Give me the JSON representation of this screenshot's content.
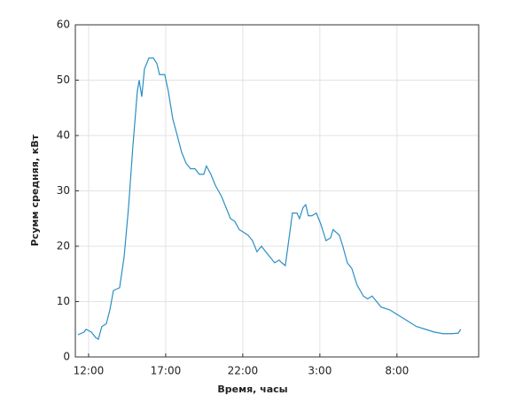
{
  "chart_data": {
    "type": "line",
    "xlabel": "Время, часы",
    "ylabel": "Pсумм средняя, кВт",
    "x": [
      11.31,
      11.71,
      11.83,
      12.17,
      12.46,
      12.63,
      12.86,
      13.15,
      13.38,
      13.61,
      14.01,
      14.3,
      14.59,
      14.87,
      15.16,
      15.28,
      15.45,
      15.62,
      15.91,
      16.2,
      16.43,
      16.6,
      16.94,
      17.17,
      17.46,
      17.75,
      18.03,
      18.32,
      18.61,
      18.9,
      19.18,
      19.47,
      19.64,
      19.93,
      20.22,
      20.62,
      20.91,
      21.2,
      21.48,
      21.77,
      22.06,
      22.34,
      22.63,
      22.92,
      23.21,
      23.49,
      23.78,
      24.07,
      24.36,
      24.53,
      24.76,
      24.93,
      25.22,
      25.51,
      25.68,
      25.91,
      26.08,
      26.25,
      26.48,
      26.77,
      27.06,
      27.4,
      27.69,
      27.86,
      28.26,
      28.49,
      28.78,
      29.07,
      29.41,
      29.82,
      30.1,
      30.39,
      30.68,
      30.97,
      31.54,
      32.11,
      32.69,
      33.26,
      33.84,
      34.41,
      34.99,
      35.56,
      35.97,
      36.14
    ],
    "values": [
      4,
      4.5,
      5,
      4.5,
      3.5,
      3.2,
      5.5,
      6,
      8.5,
      12,
      12.5,
      18,
      27,
      38,
      48,
      50,
      47,
      52,
      54,
      54,
      53,
      51,
      51,
      48,
      43,
      40,
      37,
      35,
      34,
      34,
      33,
      33,
      34.5,
      33,
      31,
      29,
      27,
      25,
      24.5,
      23,
      22.5,
      22,
      21,
      19,
      20,
      19,
      18,
      17,
      17.5,
      17,
      16.5,
      20,
      26,
      26,
      25,
      27,
      27.5,
      25.5,
      25.5,
      26,
      24,
      21,
      21.5,
      23,
      22,
      20,
      17,
      16,
      13,
      11,
      10.5,
      11,
      10,
      9,
      8.5,
      7.5,
      6.5,
      5.5,
      5,
      4.5,
      4.2,
      4.2,
      4.3,
      5
    ],
    "color": "#2a8fc4",
    "xlim": [
      11.14,
      37.3
    ],
    "xticks": [
      {
        "value": 12,
        "label": "12:00"
      },
      {
        "value": 17,
        "label": "17:00"
      },
      {
        "value": 22,
        "label": "22:00"
      },
      {
        "value": 27,
        "label": "3:00"
      },
      {
        "value": 32,
        "label": "8:00"
      }
    ],
    "ylim": [
      0,
      60
    ],
    "yticks": [
      0,
      10,
      20,
      30,
      40,
      50,
      60
    ],
    "grid": true
  }
}
